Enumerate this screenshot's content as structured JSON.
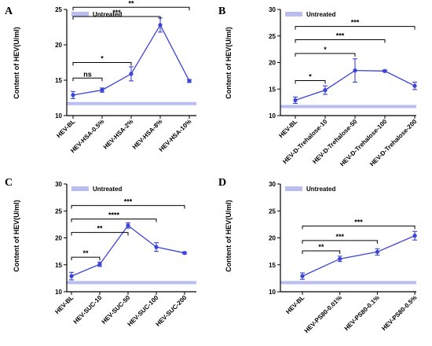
{
  "colors": {
    "series": "#3b44d6",
    "untreated": "#b9bdf2",
    "axis": "#000000"
  },
  "chart_data": [
    {
      "type": "line",
      "panel_letter": "A",
      "ylabel": "Content of HEV(U/ml)",
      "ylim": [
        10,
        25
      ],
      "yticks": [
        10,
        15,
        20,
        25
      ],
      "categories": [
        "HEV-BL",
        "HEV-HSA-0.5%",
        "HEV-HSA-2%",
        "HEV-HSA-8%",
        "HEV-HSA-10%"
      ],
      "values": [
        12.9,
        13.6,
        15.9,
        22.8,
        14.9
      ],
      "errors": [
        0.5,
        0.3,
        1.0,
        1.0,
        0.2
      ],
      "legend": {
        "label": "Untreated",
        "position": "top-left"
      },
      "reference_line": {
        "label": "Untreated",
        "value": 11.7
      },
      "comparisons": [
        {
          "from": 0,
          "to": 1,
          "label": "ns",
          "y": 15.3
        },
        {
          "from": 0,
          "to": 2,
          "label": "*",
          "y": 17.5
        },
        {
          "from": 0,
          "to": 3,
          "label": "***",
          "y": 24.0
        },
        {
          "from": 0,
          "to": 4,
          "label": "**",
          "y": 25.3
        }
      ]
    },
    {
      "type": "line",
      "panel_letter": "B",
      "ylabel": "Content of HEV(U/ml)",
      "ylim": [
        10,
        30
      ],
      "yticks": [
        10,
        15,
        20,
        25,
        30
      ],
      "categories": [
        "HEV-BL",
        "HEV-D-Trehalose-10",
        "HEV-D-Trehalose-50",
        "HEV-D-Trehalose-100",
        "HEV-D-Trehalose-200"
      ],
      "values": [
        12.9,
        14.8,
        18.5,
        18.4,
        15.6
      ],
      "errors": [
        0.6,
        0.8,
        2.2,
        0.2,
        0.7
      ],
      "legend": {
        "label": "Untreated",
        "position": "top-left"
      },
      "reference_line": {
        "label": "Untreated",
        "value": 11.7
      },
      "comparisons": [
        {
          "from": 0,
          "to": 1,
          "label": "*",
          "y": 16.6
        },
        {
          "from": 0,
          "to": 2,
          "label": "*",
          "y": 21.7
        },
        {
          "from": 0,
          "to": 3,
          "label": "***",
          "y": 24.3
        },
        {
          "from": 0,
          "to": 4,
          "label": "***",
          "y": 26.8
        }
      ]
    },
    {
      "type": "line",
      "panel_letter": "C",
      "ylabel": "Content of HEV(U/ml)",
      "ylim": [
        10,
        30
      ],
      "yticks": [
        10,
        15,
        20,
        25,
        30
      ],
      "categories": [
        "HEV-BL",
        "HEV-SUC-10",
        "HEV-SUC-50",
        "HEV-SUC-100",
        "HEV-SUC-200"
      ],
      "values": [
        12.9,
        15.1,
        22.3,
        18.3,
        17.2
      ],
      "errors": [
        0.7,
        0.4,
        0.5,
        0.8,
        0.2
      ],
      "legend": {
        "label": "Untreated",
        "position": "top-left"
      },
      "reference_line": {
        "label": "Untreated",
        "value": 11.7
      },
      "comparisons": [
        {
          "from": 0,
          "to": 1,
          "label": "**",
          "y": 16.4
        },
        {
          "from": 0,
          "to": 2,
          "label": "**",
          "y": 21.0
        },
        {
          "from": 0,
          "to": 3,
          "label": "****",
          "y": 23.5
        },
        {
          "from": 0,
          "to": 4,
          "label": "***",
          "y": 26.0
        }
      ]
    },
    {
      "type": "line",
      "panel_letter": "D",
      "ylabel": "Content of HEV(U/ml)",
      "ylim": [
        10,
        30
      ],
      "yticks": [
        10,
        15,
        20,
        25,
        30
      ],
      "categories": [
        "HEV-BL",
        "HEV-PS80-0.01%",
        "HEV-PS80-0.1%",
        "HEV-PS80-0.5%"
      ],
      "values": [
        12.9,
        16.1,
        17.4,
        20.4
      ],
      "errors": [
        0.6,
        0.5,
        0.6,
        0.8
      ],
      "legend": {
        "label": "Untreated",
        "position": "top-left"
      },
      "reference_line": {
        "label": "Untreated",
        "value": 11.7
      },
      "comparisons": [
        {
          "from": 0,
          "to": 1,
          "label": "**",
          "y": 17.6
        },
        {
          "from": 0,
          "to": 2,
          "label": "***",
          "y": 19.5
        },
        {
          "from": 0,
          "to": 3,
          "label": "***",
          "y": 22.2
        }
      ]
    }
  ]
}
